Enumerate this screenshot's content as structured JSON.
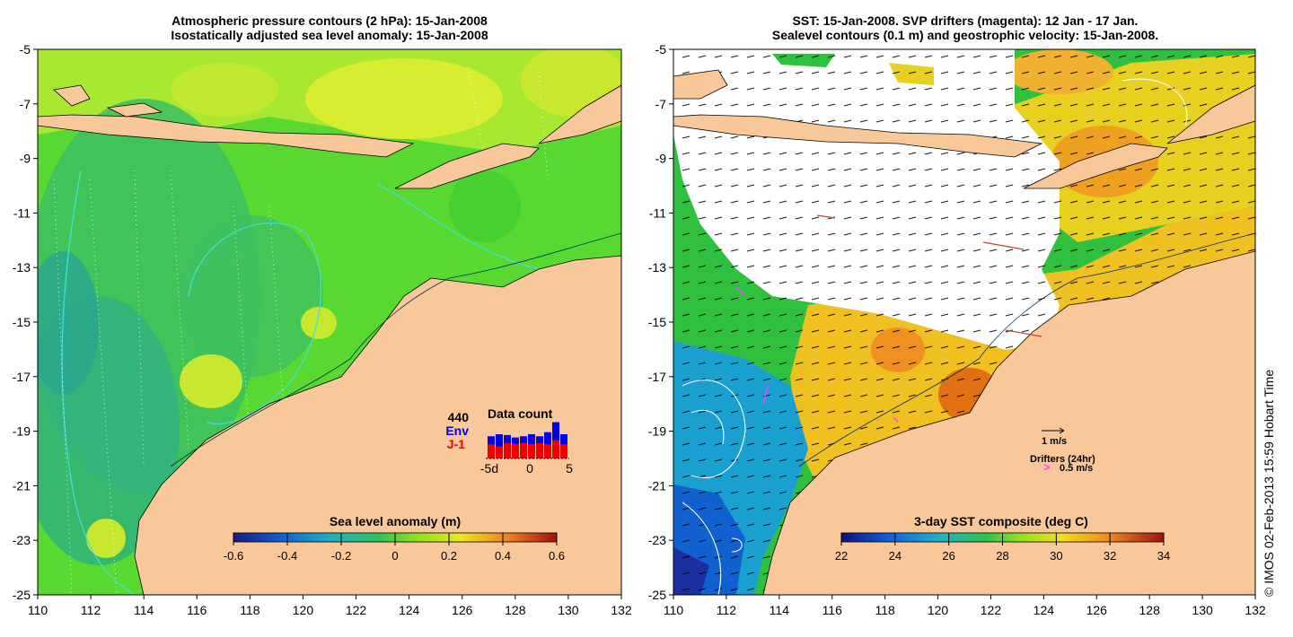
{
  "left": {
    "title_line1": "Atmospheric pressure contours (2 hPa): 15-Jan-2008",
    "title_line2": "Isostatically adjusted sea level anomaly: 15-Jan-2008",
    "colorbar_label": "Sea level anomaly (m)",
    "colorbar_ticks": [
      "-0.6",
      "-0.4",
      "-0.2",
      "0",
      "0.2",
      "0.4",
      "0.6"
    ],
    "data_count": {
      "title": "Data count",
      "total": "440",
      "env_label": "Env",
      "j1_label": "J-1",
      "axis_ticks": [
        "-5d",
        "0",
        "5"
      ],
      "env_color": "#0000ee",
      "j1_color": "#ee0000",
      "env_values": [
        0.55,
        0.6,
        0.58,
        0.52,
        0.55,
        0.6,
        0.55,
        0.65,
        0.9,
        0.6
      ],
      "j1_values": [
        0.35,
        0.3,
        0.38,
        0.36,
        0.38,
        0.36,
        0.38,
        0.35,
        0.45,
        0.35
      ]
    }
  },
  "right": {
    "title_line1": "SST: 15-Jan-2008. SVP drifters (magenta): 12 Jan - 17 Jan.",
    "title_line2": "Sealevel contours (0.1 m) and geostrophic velocity: 15-Jan-2008.",
    "colorbar_label": "3-day SST composite (deg C)",
    "colorbar_ticks": [
      "22",
      "24",
      "26",
      "28",
      "30",
      "32",
      "34"
    ],
    "velocity_scale_label": "1 m/s",
    "drifters_label": "Drifters (24hr)",
    "drifters_scale_label": "0.5 m/s"
  },
  "axes": {
    "x_ticks": [
      "110",
      "112",
      "114",
      "116",
      "118",
      "120",
      "122",
      "124",
      "126",
      "128",
      "130",
      "132"
    ],
    "y_ticks": [
      "-5",
      "-7",
      "-9",
      "-11",
      "-13",
      "-15",
      "-17",
      "-19",
      "-21",
      "-23",
      "-25"
    ]
  },
  "credit": "© IMOS 02-Feb-2013 15:59 Hobart Time",
  "colors": {
    "land": "#f8c89a",
    "ocean_left": "#58d830",
    "ocean_right_warm": "#f0b020",
    "cloud": "#ffffff",
    "sla_contour": "#40e0e0"
  }
}
